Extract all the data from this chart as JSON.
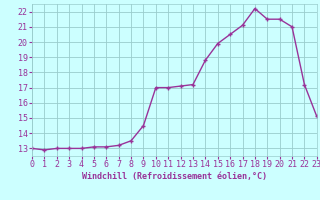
{
  "x": [
    0,
    1,
    2,
    3,
    4,
    5,
    6,
    7,
    8,
    9,
    10,
    11,
    12,
    13,
    14,
    15,
    16,
    17,
    18,
    19,
    20,
    21,
    22,
    23
  ],
  "y": [
    13.0,
    12.9,
    13.0,
    13.0,
    13.0,
    13.1,
    13.1,
    13.2,
    13.5,
    14.5,
    17.0,
    17.0,
    17.1,
    17.2,
    18.8,
    19.9,
    20.5,
    21.1,
    22.2,
    21.5,
    21.5,
    21.0,
    17.2,
    15.1
  ],
  "line_color": "#993399",
  "marker": "+",
  "bg_color": "#ccffff",
  "grid_color": "#99cccc",
  "xlabel": "Windchill (Refroidissement éolien,°C)",
  "xlim": [
    0,
    23
  ],
  "ylim": [
    12.5,
    22.5
  ],
  "yticks": [
    13,
    14,
    15,
    16,
    17,
    18,
    19,
    20,
    21,
    22
  ],
  "xticks": [
    0,
    1,
    2,
    3,
    4,
    5,
    6,
    7,
    8,
    9,
    10,
    11,
    12,
    13,
    14,
    15,
    16,
    17,
    18,
    19,
    20,
    21,
    22,
    23
  ],
  "tick_color": "#993399",
  "label_color": "#993399",
  "label_fontsize": 6.0,
  "tick_fontsize": 6.0,
  "linewidth": 1.0,
  "markersize": 3.5,
  "markeredgewidth": 1.0
}
